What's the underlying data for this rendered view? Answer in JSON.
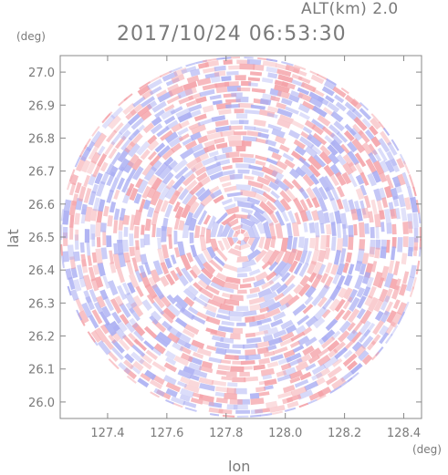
{
  "header": {
    "altitude_label": "ALT(km) 2.0",
    "timestamp": "2017/10/24 06:53:30",
    "y_unit": "(deg)",
    "x_unit": "(deg)"
  },
  "chart_data": {
    "type": "heatmap",
    "title": "2017/10/24 06:53:30",
    "xlabel": "lon",
    "ylabel": "lat",
    "x_unit": "(deg)",
    "y_unit": "(deg)",
    "xlim": [
      127.24,
      128.46
    ],
    "ylim": [
      25.95,
      27.05
    ],
    "xticks": [
      "127.4",
      "127.6",
      "127.8",
      "128.0",
      "128.2",
      "128.4"
    ],
    "xtick_values": [
      127.4,
      127.6,
      127.8,
      128.0,
      128.2,
      128.4
    ],
    "yticks": [
      "26.0",
      "26.1",
      "26.2",
      "26.3",
      "26.4",
      "26.5",
      "26.6",
      "26.7",
      "26.8",
      "26.9",
      "27.0"
    ],
    "ytick_values": [
      26.0,
      26.1,
      26.2,
      26.3,
      26.4,
      26.5,
      26.6,
      26.7,
      26.8,
      26.9,
      27.0
    ],
    "radar_center": [
      127.85,
      26.5
    ],
    "colors": {
      "positive": "#f4a0a6",
      "negative": "#a8acf2",
      "neutral": "#ffffff",
      "frame": "#888888"
    }
  }
}
